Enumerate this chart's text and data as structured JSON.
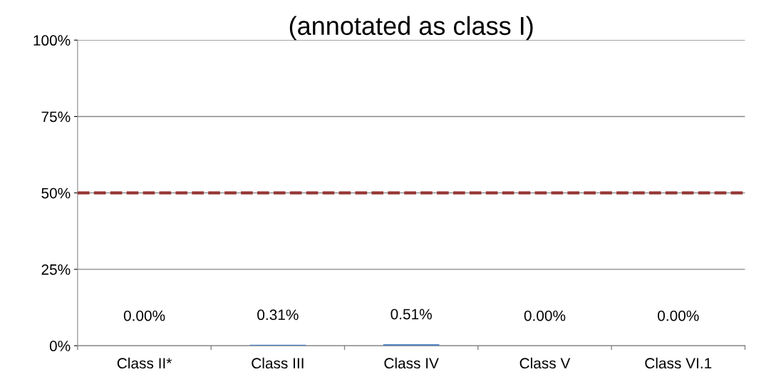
{
  "chart_data": {
    "type": "bar",
    "title": "(annotated as class I)",
    "categories": [
      "Class II*",
      "Class III",
      "Class IV",
      "Class V",
      "Class VI.1"
    ],
    "values": [
      0,
      0.31,
      0.51,
      0,
      0
    ],
    "color": "#4f81bd",
    "value_labels": [
      "0.00%",
      "0.31%",
      "0.51%",
      "0.00%",
      "0.00%"
    ],
    "ylim": [
      0,
      100
    ],
    "yticks": [
      {
        "value": 0,
        "label": "0%"
      },
      {
        "value": 25,
        "label": "25%"
      },
      {
        "value": 50,
        "label": "50%"
      },
      {
        "value": 75,
        "label": "75%"
      },
      {
        "value": 100,
        "label": "100%"
      }
    ],
    "grid": "y",
    "ref_lines": [
      {
        "axis": "y",
        "value": 50,
        "color": "#953735",
        "line_style": "dashed"
      }
    ]
  }
}
